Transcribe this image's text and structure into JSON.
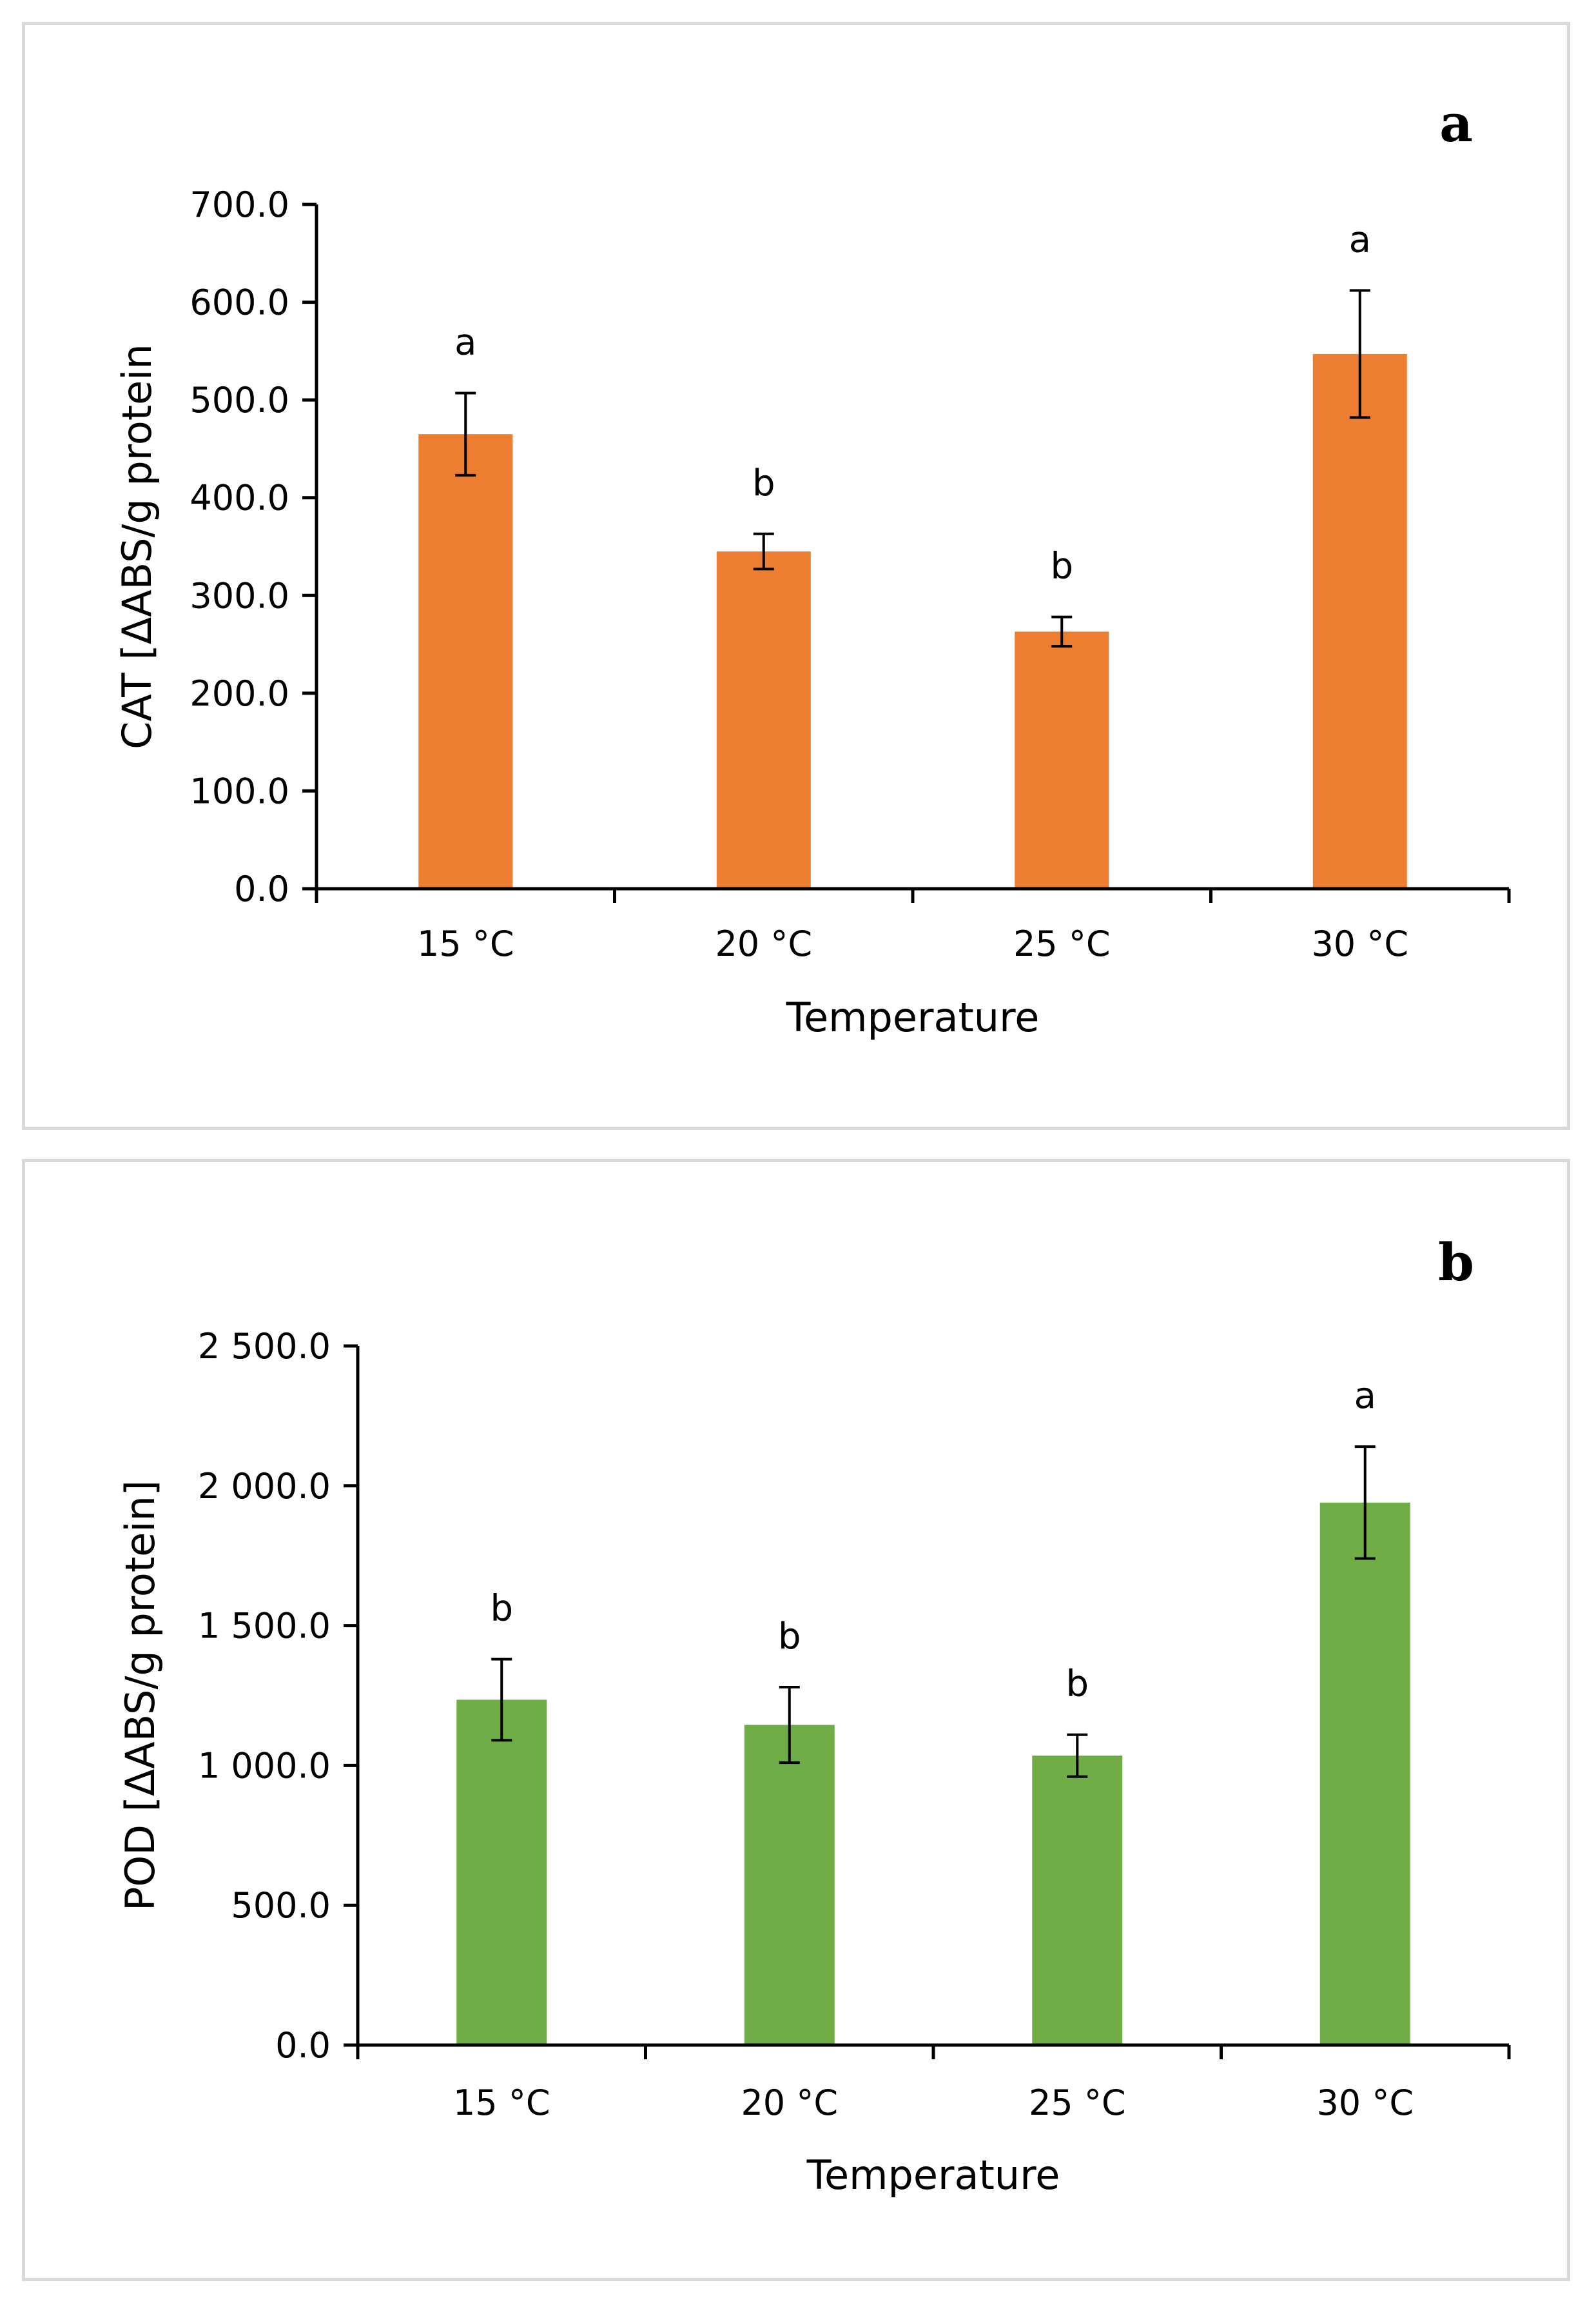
{
  "chart_data": [
    {
      "type": "bar",
      "panel_label": "a",
      "categories": [
        "15 °C",
        "20 °C",
        "25 °C",
        "30 °C"
      ],
      "values": [
        465,
        345,
        263,
        547
      ],
      "error": [
        42,
        18,
        15,
        65
      ],
      "significance": [
        "a",
        "b",
        "b",
        "a"
      ],
      "xlabel": "Temperature",
      "ylabel": "CAT [ΔABS/g protein",
      "ylim": [
        0,
        700
      ],
      "yticks": [
        0,
        100,
        200,
        300,
        400,
        500,
        600,
        700
      ],
      "ytick_labels": [
        "0.0",
        "100.0",
        "200.0",
        "300.0",
        "400.0",
        "500.0",
        "600.0",
        "700.0"
      ],
      "grid": false,
      "color": "#ED7D31"
    },
    {
      "type": "bar",
      "panel_label": "b",
      "categories": [
        "15 °C",
        "20 °C",
        "25 °C",
        "30 °C"
      ],
      "values": [
        1235,
        1145,
        1035,
        1940
      ],
      "error": [
        145,
        135,
        75,
        200
      ],
      "significance": [
        "b",
        "b",
        "b",
        "a"
      ],
      "xlabel": "Temperature",
      "ylabel": "POD [ΔABS/g protein]",
      "ylim": [
        0,
        2500
      ],
      "yticks": [
        0,
        500,
        1000,
        1500,
        2000,
        2500
      ],
      "ytick_labels": [
        "0.0",
        "500.0",
        "1 000.0",
        "1 500.0",
        "2 000.0",
        "2 500.0"
      ],
      "grid": false,
      "color": "#70AD47"
    }
  ]
}
